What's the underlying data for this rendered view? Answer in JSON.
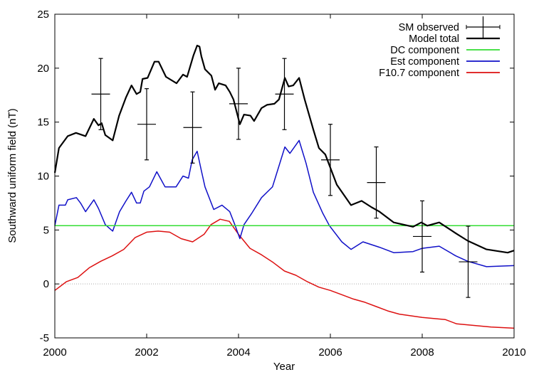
{
  "chart_data": {
    "type": "line",
    "title": "",
    "xlabel": "Year",
    "ylabel": "Southward uniform field (nT)",
    "xlim": [
      2000,
      2010
    ],
    "ylim": [
      -5,
      25
    ],
    "xticks": [
      2000,
      2002,
      2004,
      2006,
      2008,
      2010
    ],
    "yticks": [
      -5,
      0,
      5,
      10,
      15,
      20,
      25
    ],
    "grid": false,
    "zero_line": true,
    "legend_position": "top-right",
    "colors": {
      "observed": "#000000",
      "total": "#000000",
      "dc": "#33dd33",
      "est": "#1010c8",
      "f107": "#dd1111",
      "zero": "#aaaaaa"
    },
    "observed": {
      "name": "SM observed",
      "x": [
        2001,
        2002,
        2003,
        2004,
        2005,
        2006,
        2007,
        2008,
        2009
      ],
      "y": [
        17.6,
        14.8,
        14.5,
        16.7,
        17.6,
        11.5,
        9.4,
        4.4,
        2.05
      ],
      "err": [
        3.3,
        3.3,
        3.3,
        3.3,
        3.3,
        3.3,
        3.3,
        3.3,
        3.3
      ]
    },
    "series": [
      {
        "key": "total",
        "name": "Model total",
        "x": [
          2000.0,
          2000.09,
          2000.28,
          2000.46,
          2000.67,
          2000.85,
          2000.95,
          2001.02,
          2001.1,
          2001.26,
          2001.4,
          2001.55,
          2001.67,
          2001.78,
          2001.86,
          2001.91,
          2002.02,
          2002.17,
          2002.26,
          2002.42,
          2002.65,
          2002.79,
          2002.88,
          2003.02,
          2003.1,
          2003.15,
          2003.19,
          2003.27,
          2003.41,
          2003.49,
          2003.57,
          2003.72,
          2003.81,
          2003.89,
          2004.03,
          2004.12,
          2004.26,
          2004.34,
          2004.5,
          2004.62,
          2004.78,
          2004.88,
          2005.01,
          2005.09,
          2005.19,
          2005.32,
          2005.44,
          2005.63,
          2005.75,
          2005.89,
          2006.14,
          2006.45,
          2006.68,
          2006.9,
          2007.07,
          2007.38,
          2007.8,
          2007.98,
          2008.11,
          2008.37,
          2008.73,
          2008.99,
          2009.4,
          2009.86,
          2010.0
        ],
        "y": [
          10.3,
          12.6,
          13.7,
          14.0,
          13.7,
          15.3,
          14.7,
          14.9,
          13.8,
          13.3,
          15.6,
          17.3,
          18.4,
          17.6,
          17.8,
          19.0,
          19.1,
          20.6,
          20.6,
          19.2,
          18.6,
          19.4,
          19.2,
          21.2,
          22.1,
          22.0,
          21.1,
          19.9,
          19.3,
          18.0,
          18.6,
          18.4,
          17.8,
          17.1,
          14.8,
          15.7,
          15.6,
          15.1,
          16.3,
          16.6,
          16.7,
          17.1,
          19.1,
          18.3,
          18.4,
          19.1,
          17.1,
          14.3,
          12.6,
          12.0,
          9.2,
          7.3,
          7.7,
          7.1,
          6.7,
          5.7,
          5.3,
          5.7,
          5.4,
          5.7,
          4.7,
          4.0,
          3.2,
          2.9,
          3.1
        ]
      },
      {
        "key": "dc",
        "name": "DC component",
        "x": [
          2000,
          2010
        ],
        "y": [
          5.4,
          5.4
        ]
      },
      {
        "key": "est",
        "name": "Est component",
        "x": [
          2000.0,
          2000.09,
          2000.23,
          2000.28,
          2000.47,
          2000.56,
          2000.67,
          2000.85,
          2000.95,
          2001.1,
          2001.26,
          2001.41,
          2001.55,
          2001.67,
          2001.78,
          2001.86,
          2001.94,
          2002.06,
          2002.22,
          2002.4,
          2002.64,
          2002.79,
          2002.91,
          2002.99,
          2003.1,
          2003.19,
          2003.27,
          2003.46,
          2003.64,
          2003.81,
          2003.92,
          2004.03,
          2004.12,
          2004.28,
          2004.5,
          2004.74,
          2005.01,
          2005.12,
          2005.32,
          2005.47,
          2005.63,
          2005.83,
          2005.98,
          2006.25,
          2006.45,
          2006.71,
          2007.07,
          2007.38,
          2007.8,
          2008.0,
          2008.37,
          2008.73,
          2008.99,
          2009.4,
          2010.0
        ],
        "y": [
          5.4,
          7.3,
          7.3,
          7.8,
          8.0,
          7.5,
          6.7,
          7.8,
          7.0,
          5.5,
          4.9,
          6.7,
          7.7,
          8.5,
          7.5,
          7.5,
          8.6,
          9.0,
          10.4,
          9.0,
          9.0,
          10.0,
          9.8,
          11.5,
          12.3,
          10.5,
          9.0,
          6.9,
          7.3,
          6.7,
          5.5,
          4.2,
          5.5,
          6.5,
          8.0,
          9.0,
          12.7,
          12.1,
          13.3,
          11.2,
          8.5,
          6.6,
          5.4,
          3.9,
          3.2,
          3.9,
          3.4,
          2.9,
          3.0,
          3.3,
          3.5,
          2.6,
          2.1,
          1.6,
          1.7
        ]
      },
      {
        "key": "f107",
        "name": "F10.7 component",
        "x": [
          2000,
          2000.25,
          2000.5,
          2000.75,
          2001,
          2001.25,
          2001.5,
          2001.75,
          2002,
          2002.25,
          2002.5,
          2002.75,
          2003,
          2003.25,
          2003.4,
          2003.6,
          2003.8,
          2004,
          2004.25,
          2004.5,
          2004.75,
          2005,
          2005.25,
          2005.5,
          2005.75,
          2006,
          2006.25,
          2006.5,
          2006.75,
          2007,
          2007.25,
          2007.5,
          2008,
          2008.5,
          2008.75,
          2009,
          2009.5,
          2010
        ],
        "y": [
          -0.6,
          0.2,
          0.6,
          1.5,
          2.1,
          2.6,
          3.2,
          4.3,
          4.8,
          4.9,
          4.8,
          4.2,
          3.9,
          4.6,
          5.5,
          6.0,
          5.8,
          4.6,
          3.3,
          2.7,
          2.0,
          1.2,
          0.8,
          0.2,
          -0.3,
          -0.6,
          -1.0,
          -1.4,
          -1.7,
          -2.1,
          -2.5,
          -2.8,
          -3.1,
          -3.3,
          -3.7,
          -3.8,
          -4.0,
          -4.1
        ]
      }
    ],
    "legend": [
      "SM observed",
      "Model total",
      "DC component",
      "Est component",
      "F10.7 component"
    ]
  }
}
